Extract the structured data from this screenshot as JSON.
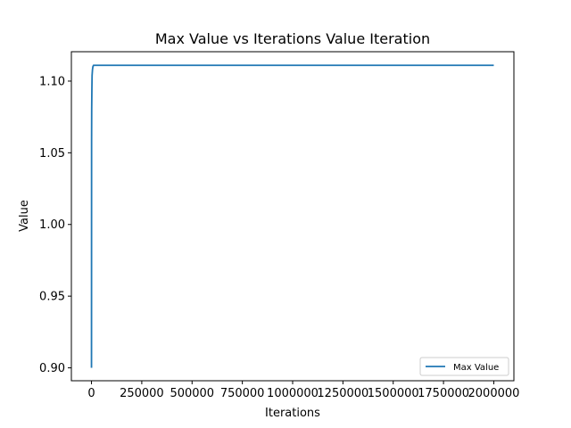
{
  "chart_data": {
    "type": "line",
    "title": "Max Value vs Iterations Value Iteration",
    "xlabel": "Iterations",
    "ylabel": "Value",
    "xlim": [
      -100000,
      2100000
    ],
    "ylim": [
      0.891,
      1.1205
    ],
    "x_ticks": [
      0,
      250000,
      500000,
      750000,
      1000000,
      1250000,
      1500000,
      1750000,
      2000000
    ],
    "x_tick_labels": [
      "0",
      "250000",
      "500000",
      "750000",
      "1000000",
      "1250000",
      "1500000",
      "1750000",
      "2000000"
    ],
    "y_ticks": [
      0.9,
      0.95,
      1.0,
      1.05,
      1.1
    ],
    "y_tick_labels": [
      "0.90",
      "0.95",
      "1.00",
      "1.05",
      "1.10"
    ],
    "grid": false,
    "legend_position": "lower-right",
    "series": [
      {
        "name": "Max Value",
        "color": "#1f77b4",
        "x": [
          0,
          500,
          1000,
          2000,
          3000,
          5000,
          7000,
          10000,
          20000,
          2000000
        ],
        "y": [
          0.9,
          1.058,
          1.08,
          1.095,
          1.104,
          1.108,
          1.11,
          1.111,
          1.111,
          1.111
        ]
      }
    ]
  }
}
